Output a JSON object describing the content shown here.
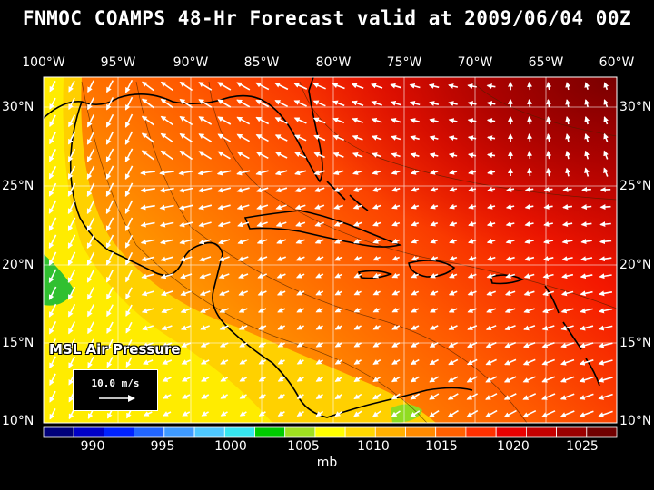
{
  "title": "FNMOC COAMPS 48-Hr Forecast valid at 2009/06/04 00Z",
  "lon_labels": [
    "100°W",
    "95°W",
    "90°W",
    "85°W",
    "80°W",
    "75°W",
    "70°W",
    "65°W",
    "60°W"
  ],
  "lat_labels": [
    "30°N",
    "25°N",
    "20°N",
    "15°N",
    "10°N"
  ],
  "layer_label": "MSL Air Pressure",
  "reference_vector": {
    "label": "10.0 m/s"
  },
  "colorbar": {
    "tick_labels": [
      "990",
      "995",
      "1000",
      "1005",
      "1010",
      "1015",
      "1020",
      "1025"
    ],
    "unit": "mb",
    "colors": [
      "#00007a",
      "#0000c8",
      "#0022ff",
      "#2266ff",
      "#3f9aff",
      "#4ec8ff",
      "#36e6f0",
      "#00cc00",
      "#a0e020",
      "#ffff00",
      "#ffd800",
      "#ffb000",
      "#ff8a00",
      "#ff6000",
      "#ff3000",
      "#e80000",
      "#c40000",
      "#9a0000",
      "#700000"
    ]
  },
  "colors": {
    "background": "#000000",
    "text": "#ffffff"
  }
}
